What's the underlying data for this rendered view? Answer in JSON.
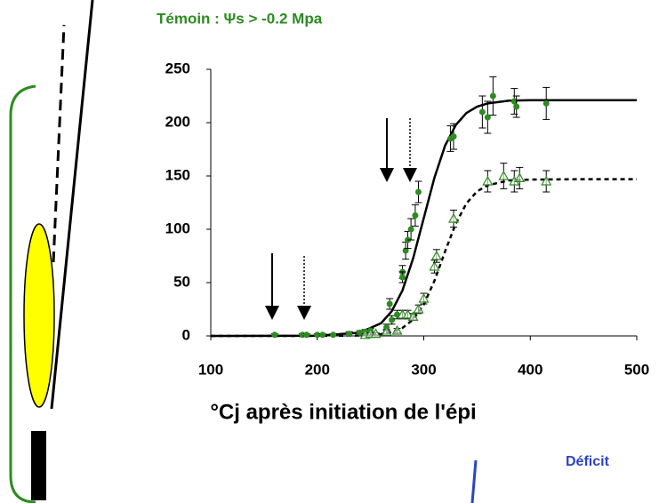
{
  "chart_data": {
    "type": "scatter",
    "title": "Témoin : Ψs > -0.2 Mpa",
    "xlabel": "°Cj après initiation de l'épi",
    "xlim": [
      100,
      500
    ],
    "ylim": [
      0,
      250
    ],
    "xticks": [
      100,
      200,
      300,
      400,
      500
    ],
    "yticks": [
      0,
      50,
      100,
      150,
      200,
      250
    ],
    "grid": false,
    "series": [
      {
        "marker": "circle",
        "color": "#2e8b22",
        "x": [
          160,
          186,
          190,
          200,
          205,
          215,
          230,
          240,
          245,
          250,
          265,
          270,
          268,
          275,
          280,
          283,
          285,
          280,
          288,
          292,
          295,
          325,
          328,
          355,
          360,
          365,
          385,
          387,
          415
        ],
        "values": [
          1,
          1,
          1,
          1,
          1,
          1,
          2,
          3,
          4,
          5,
          8,
          15,
          30,
          20,
          60,
          80,
          90,
          55,
          100,
          113,
          135,
          185,
          187,
          210,
          205,
          225,
          220,
          215,
          218
        ],
        "errors": [
          1,
          1,
          1,
          1,
          1,
          1,
          2,
          2,
          2,
          2,
          3,
          4,
          5,
          4,
          6,
          8,
          8,
          5,
          10,
          10,
          10,
          12,
          12,
          15,
          15,
          18,
          12,
          10,
          15
        ]
      },
      {
        "marker": "triangle",
        "color": "#2e8b22",
        "x": [
          245,
          250,
          255,
          265,
          275,
          280,
          285,
          290,
          295,
          300,
          310,
          312,
          328,
          360,
          375,
          385,
          390,
          415
        ],
        "values": [
          1,
          2,
          2,
          4,
          5,
          20,
          20,
          18,
          25,
          35,
          65,
          75,
          110,
          145,
          150,
          145,
          148,
          145
        ],
        "errors": [
          1,
          1,
          1,
          2,
          2,
          4,
          4,
          3,
          4,
          5,
          6,
          6,
          8,
          10,
          12,
          10,
          10,
          10
        ]
      }
    ],
    "fits": [
      {
        "dash": false,
        "color": "#000000",
        "x": [
          100,
          200,
          240,
          260,
          270,
          280,
          290,
          300,
          310,
          320,
          330,
          340,
          350,
          360,
          380,
          400,
          450,
          500
        ],
        "values": [
          0,
          0.2,
          3,
          12,
          23.3,
          42.7,
          72.7,
          110.5,
          148.3,
          178.4,
          197.7,
          209,
          215,
          218,
          220.6,
          221,
          221,
          221
        ]
      },
      {
        "dash": true,
        "color": "#000000",
        "x": [
          100,
          200,
          240,
          260,
          270,
          280,
          290,
          300,
          310,
          320,
          330,
          340,
          350,
          360,
          380,
          400,
          450,
          500
        ],
        "values": [
          0,
          0,
          0.4,
          1.7,
          3.6,
          7.5,
          15.3,
          29.4,
          51.6,
          79.2,
          105.2,
          124.2,
          135.5,
          141.3,
          145.8,
          146.6,
          147,
          147
        ]
      }
    ]
  },
  "side_label": "Déficit"
}
